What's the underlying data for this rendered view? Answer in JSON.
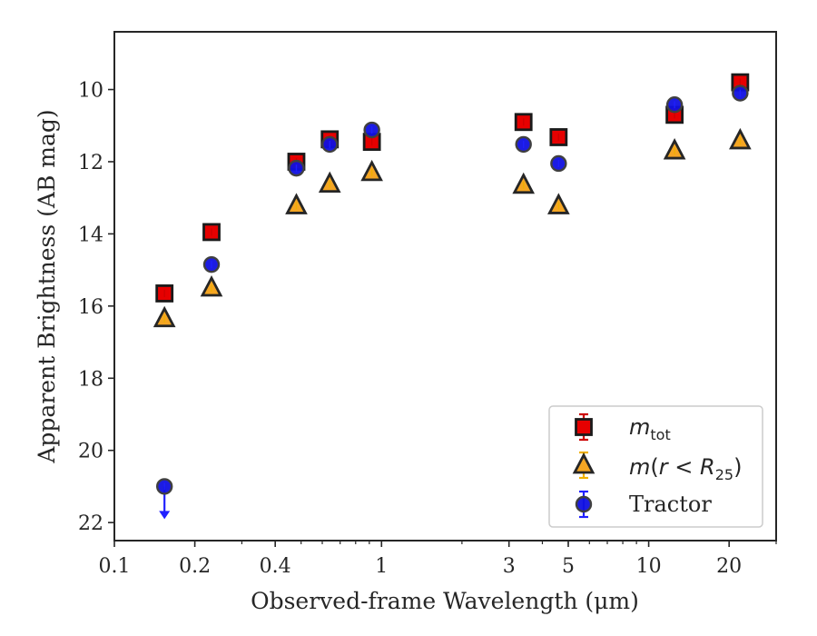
{
  "chart_data": {
    "type": "scatter",
    "xlabel": "Observed-frame Wavelength (μm)",
    "ylabel": "Apparent Brightness (AB mag)",
    "xscale": "log",
    "xlim": [
      0.1,
      30
    ],
    "ylim": [
      22.5,
      8.4
    ],
    "y_inverted": true,
    "xticks": [
      {
        "value": 0.1,
        "label": "0.1"
      },
      {
        "value": 0.2,
        "label": "0.2"
      },
      {
        "value": 0.4,
        "label": "0.4"
      },
      {
        "value": 1,
        "label": "1"
      },
      {
        "value": 3,
        "label": "3"
      },
      {
        "value": 5,
        "label": "5"
      },
      {
        "value": 10,
        "label": "10"
      },
      {
        "value": 20,
        "label": "20"
      }
    ],
    "yticks": [
      10,
      12,
      14,
      16,
      18,
      20,
      22
    ],
    "grid": false,
    "legend_position": "lower-right",
    "series": [
      {
        "key": "mtot",
        "marker": "square",
        "face": "#e60000",
        "edge": "#1a1a1a",
        "errcolor": "#cc0000",
        "points": [
          {
            "x": 0.154,
            "y": 15.65
          },
          {
            "x": 0.231,
            "y": 13.95
          },
          {
            "x": 0.48,
            "y": 12.0
          },
          {
            "x": 0.64,
            "y": 11.38
          },
          {
            "x": 0.92,
            "y": 11.45
          },
          {
            "x": 3.4,
            "y": 10.9
          },
          {
            "x": 4.6,
            "y": 11.32
          },
          {
            "x": 12.5,
            "y": 10.7
          },
          {
            "x": 22.0,
            "y": 9.8
          }
        ]
      },
      {
        "key": "mr25",
        "marker": "triangle",
        "face": "#f5a623",
        "edge": "#262626",
        "errcolor": "#f0b000",
        "points": [
          {
            "x": 0.154,
            "y": 16.35
          },
          {
            "x": 0.231,
            "y": 15.5
          },
          {
            "x": 0.48,
            "y": 13.22
          },
          {
            "x": 0.64,
            "y": 12.62
          },
          {
            "x": 0.92,
            "y": 12.3
          },
          {
            "x": 3.4,
            "y": 12.65
          },
          {
            "x": 4.6,
            "y": 13.22
          },
          {
            "x": 12.5,
            "y": 11.7
          },
          {
            "x": 22.0,
            "y": 11.42
          }
        ]
      },
      {
        "key": "tractor",
        "name": "Tractor",
        "marker": "circle",
        "face": "#1010e0",
        "edge": "#404040",
        "errcolor": "#2020ff",
        "points": [
          {
            "x": 0.154,
            "y": 21.0,
            "upper_limit": true
          },
          {
            "x": 0.231,
            "y": 14.85
          },
          {
            "x": 0.48,
            "y": 12.18
          },
          {
            "x": 0.64,
            "y": 11.52
          },
          {
            "x": 0.92,
            "y": 11.12
          },
          {
            "x": 3.4,
            "y": 11.52
          },
          {
            "x": 4.6,
            "y": 12.05
          },
          {
            "x": 12.5,
            "y": 10.42
          },
          {
            "x": 22.0,
            "y": 10.1
          }
        ]
      }
    ]
  }
}
